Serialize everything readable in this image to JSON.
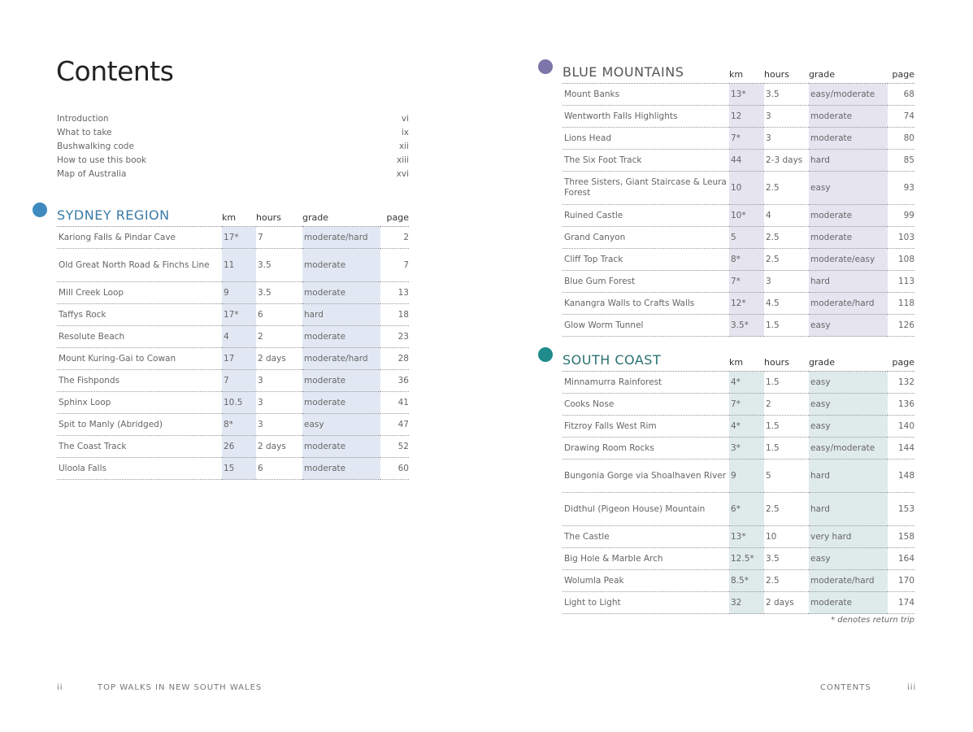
{
  "title": "Contents",
  "intro": [
    {
      "label": "Introduction",
      "page": "vi"
    },
    {
      "label": "What to take",
      "page": "ix"
    },
    {
      "label": "Bushwalking code",
      "page": "xii"
    },
    {
      "label": "How to use this book",
      "page": "xiii"
    },
    {
      "label": "Map of Australia",
      "page": "xvi"
    }
  ],
  "columns": {
    "km": "km",
    "hours": "hours",
    "grade": "grade",
    "page": "page"
  },
  "sections": [
    {
      "name": "SYDNEY REGION",
      "color": "#3f8bc0",
      "heading_color": "#3a78a6",
      "shade": "#e2e8f3",
      "rows": [
        [
          "Kariong Falls & Pindar Cave",
          "17*",
          "7",
          "moderate/hard",
          "2"
        ],
        [
          "Old Great North Road & Finchs Line",
          "11",
          "3.5",
          "moderate",
          "7"
        ],
        [
          "Mill Creek Loop",
          "9",
          "3.5",
          "moderate",
          "13"
        ],
        [
          "Taffys Rock",
          "17*",
          "6",
          "hard",
          "18"
        ],
        [
          "Resolute Beach",
          "4",
          "2",
          "moderate",
          "23"
        ],
        [
          "Mount Kuring-Gai to Cowan",
          "17",
          "2 days",
          "moderate/hard",
          "28"
        ],
        [
          "The Fishponds",
          "7",
          "3",
          "moderate",
          "36"
        ],
        [
          "Sphinx Loop",
          "10.5",
          "3",
          "moderate",
          "41"
        ],
        [
          "Spit to Manly (Abridged)",
          "8*",
          "3",
          "easy",
          "47"
        ],
        [
          "The Coast Track",
          "26",
          "2 days",
          "moderate",
          "52"
        ],
        [
          "Uloola Falls",
          "15",
          "6",
          "moderate",
          "60"
        ]
      ]
    },
    {
      "name": "BLUE MOUNTAINS",
      "color": "#7c76aa",
      "heading_color": "#555",
      "shade": "#e6e4ef",
      "rows": [
        [
          "Mount Banks",
          "13*",
          "3.5",
          "easy/moderate",
          "68"
        ],
        [
          "Wentworth Falls Highlights",
          "12",
          "3",
          "moderate",
          "74"
        ],
        [
          "Lions Head",
          "7*",
          "3",
          "moderate",
          "80"
        ],
        [
          "The Six Foot Track",
          "44",
          "2-3 days",
          "hard",
          "85"
        ],
        [
          "Three Sisters, Giant Staircase & Leura Forest",
          "10",
          "2.5",
          "easy",
          "93"
        ],
        [
          "Ruined Castle",
          "10*",
          "4",
          "moderate",
          "99"
        ],
        [
          "Grand Canyon",
          "5",
          "2.5",
          "moderate",
          "103"
        ],
        [
          "Cliff Top Track",
          "8*",
          "2.5",
          "moderate/easy",
          "108"
        ],
        [
          "Blue Gum Forest",
          "7*",
          "3",
          "hard",
          "113"
        ],
        [
          "Kanangra Walls to Crafts Walls",
          "12*",
          "4.5",
          "moderate/hard",
          "118"
        ],
        [
          "Glow Worm Tunnel",
          "3.5*",
          "1.5",
          "easy",
          "126"
        ]
      ]
    },
    {
      "name": "SOUTH COAST",
      "color": "#1f8b8c",
      "heading_color": "#2a6f70",
      "shade": "#dfeaea",
      "rows": [
        [
          "Minnamurra Rainforest",
          "4*",
          "1.5",
          "easy",
          "132"
        ],
        [
          "Cooks Nose",
          "7*",
          "2",
          "easy",
          "136"
        ],
        [
          "Fitzroy Falls West Rim",
          "4*",
          "1.5",
          "easy",
          "140"
        ],
        [
          "Drawing Room Rocks",
          "3*",
          "1.5",
          "easy/moderate",
          "144"
        ],
        [
          "Bungonia Gorge via Shoalhaven River",
          "9",
          "5",
          "hard",
          "148"
        ],
        [
          "Didthul (Pigeon House) Mountain",
          "6*",
          "2.5",
          "hard",
          "153"
        ],
        [
          "The Castle",
          "13*",
          "10",
          "very hard",
          "158"
        ],
        [
          "Big Hole & Marble Arch",
          "12.5*",
          "3.5",
          "easy",
          "164"
        ],
        [
          "Wolumla Peak",
          "8.5*",
          "2.5",
          "moderate/hard",
          "170"
        ],
        [
          "Light to Light",
          "32",
          "2 days",
          "moderate",
          "174"
        ]
      ]
    }
  ],
  "note": "* denotes return trip",
  "footer": {
    "left_page": "ii",
    "left_title": "TOP WALKS IN NEW SOUTH WALES",
    "right_title": "CONTENTS",
    "right_page": "iii"
  }
}
